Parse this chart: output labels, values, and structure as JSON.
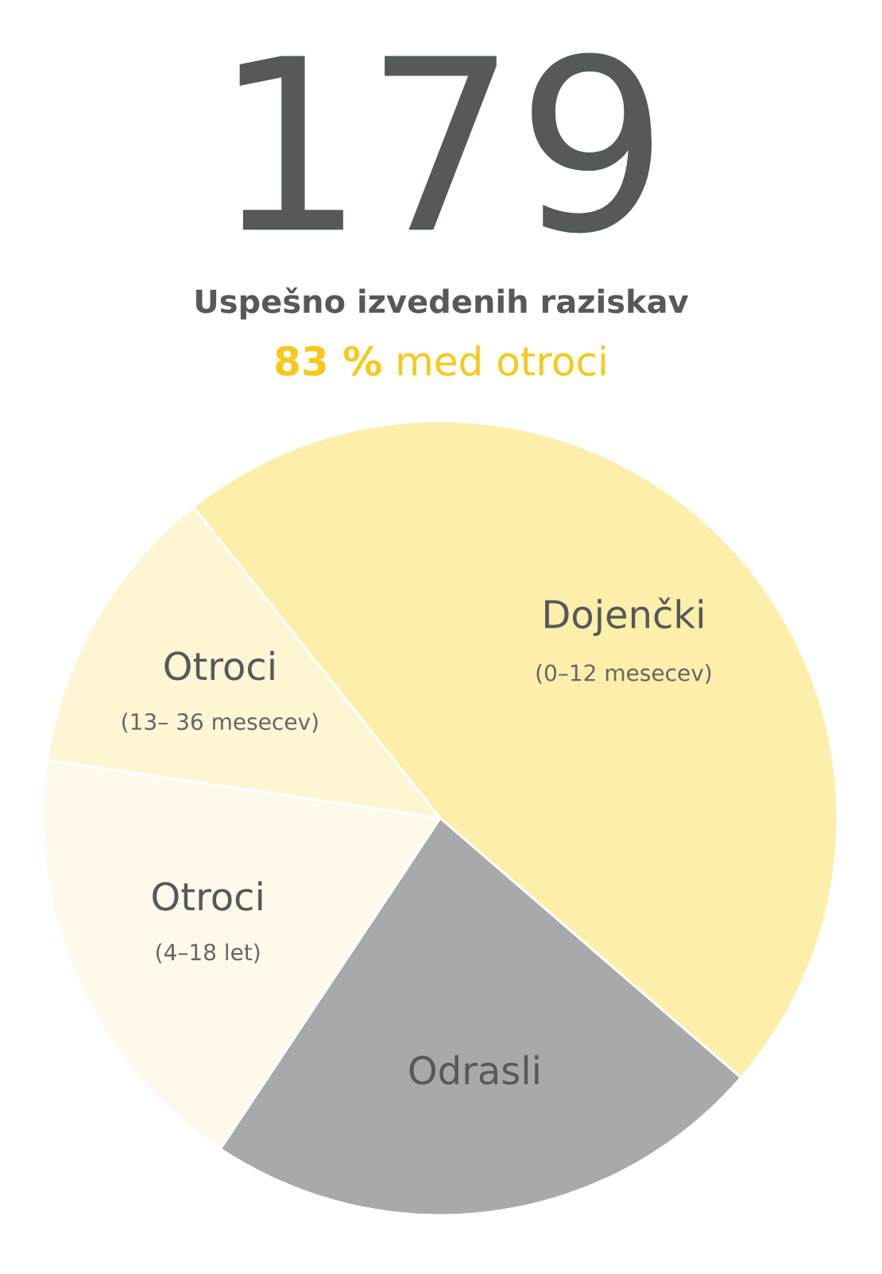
{
  "chart_data": {
    "type": "pie",
    "title": "179",
    "subtitle": "Uspešno izvedenih raziskav",
    "categories": [
      "Odrasli",
      "Otroci",
      "Otroci",
      "Dojenčki"
    ],
    "values": [
      23,
      18,
      12,
      47
    ],
    "colors": [
      "#a7a9ab",
      "#fff9ec",
      "#fef5d3",
      "#fdeeaa"
    ],
    "annotations": [
      "**83 %** med otroci",
      "(4–18 let)",
      "(13– 36 mesecev)",
      "(0–12 mesecev)"
    ]
  }
}
